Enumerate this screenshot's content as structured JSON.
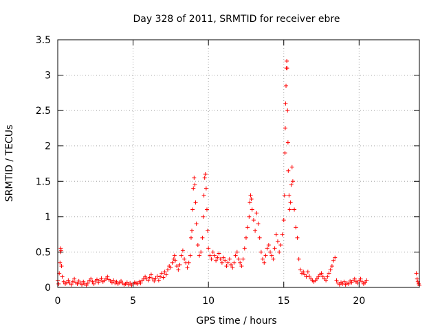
{
  "chart_data": {
    "type": "scatter",
    "title": "Day 328 of 2011, SRMTID for receiver ebre",
    "xlabel": "GPS time / hours",
    "ylabel": "SRMTID / TECUs",
    "xlim": [
      0,
      24
    ],
    "ylim": [
      0,
      3.5
    ],
    "xticks": [
      0,
      5,
      10,
      15,
      20
    ],
    "yticks": [
      0,
      0.5,
      1,
      1.5,
      2,
      2.5,
      3,
      3.5
    ],
    "xtick_labels": [
      "0",
      "5",
      "10",
      "15",
      "20"
    ],
    "ytick_labels": [
      "0",
      "0.5",
      "1",
      "1.5",
      "2",
      "2.5",
      "3",
      "3.5"
    ],
    "grid": true,
    "marker": "+",
    "marker_color": "#ff0000",
    "series": [
      {
        "points": [
          [
            0.0,
            0.1
          ],
          [
            0.05,
            0.05
          ],
          [
            0.1,
            0.2
          ],
          [
            0.15,
            0.35
          ],
          [
            0.18,
            0.5
          ],
          [
            0.2,
            0.55
          ],
          [
            0.22,
            0.52
          ],
          [
            0.25,
            0.3
          ],
          [
            0.3,
            0.15
          ],
          [
            0.4,
            0.08
          ],
          [
            0.5,
            0.05
          ],
          [
            0.6,
            0.07
          ],
          [
            0.7,
            0.1
          ],
          [
            0.8,
            0.06
          ],
          [
            0.9,
            0.04
          ],
          [
            1.0,
            0.08
          ],
          [
            1.1,
            0.12
          ],
          [
            1.2,
            0.07
          ],
          [
            1.3,
            0.05
          ],
          [
            1.4,
            0.09
          ],
          [
            1.5,
            0.06
          ],
          [
            1.6,
            0.04
          ],
          [
            1.7,
            0.08
          ],
          [
            1.8,
            0.05
          ],
          [
            1.9,
            0.03
          ],
          [
            2.0,
            0.06
          ],
          [
            2.1,
            0.1
          ],
          [
            2.2,
            0.12
          ],
          [
            2.3,
            0.08
          ],
          [
            2.4,
            0.05
          ],
          [
            2.5,
            0.09
          ],
          [
            2.6,
            0.11
          ],
          [
            2.7,
            0.07
          ],
          [
            2.8,
            0.1
          ],
          [
            2.9,
            0.13
          ],
          [
            3.0,
            0.08
          ],
          [
            3.1,
            0.1
          ],
          [
            3.2,
            0.12
          ],
          [
            3.3,
            0.15
          ],
          [
            3.4,
            0.11
          ],
          [
            3.5,
            0.09
          ],
          [
            3.6,
            0.07
          ],
          [
            3.7,
            0.1
          ],
          [
            3.8,
            0.06
          ],
          [
            3.9,
            0.08
          ],
          [
            4.0,
            0.05
          ],
          [
            4.1,
            0.07
          ],
          [
            4.2,
            0.09
          ],
          [
            4.3,
            0.06
          ],
          [
            4.4,
            0.04
          ],
          [
            4.5,
            0.05
          ],
          [
            4.6,
            0.07
          ],
          [
            4.7,
            0.04
          ],
          [
            4.8,
            0.06
          ],
          [
            4.9,
            0.03
          ],
          [
            5.0,
            0.05
          ],
          [
            5.1,
            0.07
          ],
          [
            5.2,
            0.06
          ],
          [
            5.3,
            0.05
          ],
          [
            5.4,
            0.08
          ],
          [
            5.5,
            0.06
          ],
          [
            5.6,
            0.1
          ],
          [
            5.7,
            0.12
          ],
          [
            5.8,
            0.15
          ],
          [
            5.9,
            0.12
          ],
          [
            6.0,
            0.1
          ],
          [
            6.1,
            0.14
          ],
          [
            6.2,
            0.18
          ],
          [
            6.3,
            0.12
          ],
          [
            6.4,
            0.09
          ],
          [
            6.5,
            0.13
          ],
          [
            6.6,
            0.16
          ],
          [
            6.7,
            0.1
          ],
          [
            6.8,
            0.15
          ],
          [
            6.9,
            0.2
          ],
          [
            7.0,
            0.14
          ],
          [
            7.1,
            0.22
          ],
          [
            7.2,
            0.18
          ],
          [
            7.3,
            0.25
          ],
          [
            7.4,
            0.3
          ],
          [
            7.5,
            0.28
          ],
          [
            7.6,
            0.35
          ],
          [
            7.7,
            0.4
          ],
          [
            7.75,
            0.45
          ],
          [
            7.8,
            0.38
          ],
          [
            7.9,
            0.3
          ],
          [
            8.0,
            0.25
          ],
          [
            8.1,
            0.32
          ],
          [
            8.2,
            0.45
          ],
          [
            8.3,
            0.52
          ],
          [
            8.4,
            0.4
          ],
          [
            8.5,
            0.35
          ],
          [
            8.6,
            0.28
          ],
          [
            8.7,
            0.35
          ],
          [
            8.8,
            0.45
          ],
          [
            8.85,
            0.7
          ],
          [
            8.9,
            0.8
          ],
          [
            8.95,
            1.1
          ],
          [
            9.0,
            1.4
          ],
          [
            9.05,
            1.55
          ],
          [
            9.1,
            1.45
          ],
          [
            9.15,
            1.2
          ],
          [
            9.2,
            0.9
          ],
          [
            9.3,
            0.6
          ],
          [
            9.4,
            0.45
          ],
          [
            9.5,
            0.5
          ],
          [
            9.6,
            0.7
          ],
          [
            9.65,
            1.0
          ],
          [
            9.7,
            1.3
          ],
          [
            9.75,
            1.55
          ],
          [
            9.8,
            1.6
          ],
          [
            9.85,
            1.4
          ],
          [
            9.9,
            1.1
          ],
          [
            9.95,
            0.8
          ],
          [
            10.0,
            0.55
          ],
          [
            10.1,
            0.45
          ],
          [
            10.2,
            0.4
          ],
          [
            10.3,
            0.5
          ],
          [
            10.4,
            0.45
          ],
          [
            10.5,
            0.38
          ],
          [
            10.6,
            0.42
          ],
          [
            10.7,
            0.48
          ],
          [
            10.8,
            0.4
          ],
          [
            10.9,
            0.35
          ],
          [
            11.0,
            0.42
          ],
          [
            11.1,
            0.38
          ],
          [
            11.2,
            0.3
          ],
          [
            11.3,
            0.35
          ],
          [
            11.4,
            0.4
          ],
          [
            11.5,
            0.32
          ],
          [
            11.6,
            0.28
          ],
          [
            11.7,
            0.35
          ],
          [
            11.8,
            0.45
          ],
          [
            11.9,
            0.5
          ],
          [
            12.0,
            0.4
          ],
          [
            12.1,
            0.35
          ],
          [
            12.2,
            0.3
          ],
          [
            12.3,
            0.4
          ],
          [
            12.4,
            0.55
          ],
          [
            12.5,
            0.7
          ],
          [
            12.6,
            0.85
          ],
          [
            12.7,
            1.0
          ],
          [
            12.75,
            1.2
          ],
          [
            12.8,
            1.3
          ],
          [
            12.85,
            1.25
          ],
          [
            12.9,
            1.1
          ],
          [
            13.0,
            0.95
          ],
          [
            13.1,
            0.8
          ],
          [
            13.2,
            1.05
          ],
          [
            13.3,
            0.9
          ],
          [
            13.4,
            0.7
          ],
          [
            13.5,
            0.5
          ],
          [
            13.6,
            0.4
          ],
          [
            13.7,
            0.35
          ],
          [
            13.8,
            0.45
          ],
          [
            13.9,
            0.55
          ],
          [
            14.0,
            0.6
          ],
          [
            14.1,
            0.5
          ],
          [
            14.2,
            0.45
          ],
          [
            14.3,
            0.4
          ],
          [
            14.4,
            0.55
          ],
          [
            14.5,
            0.75
          ],
          [
            14.6,
            0.65
          ],
          [
            14.7,
            0.5
          ],
          [
            14.8,
            0.6
          ],
          [
            14.9,
            0.75
          ],
          [
            15.0,
            0.95
          ],
          [
            15.05,
            1.3
          ],
          [
            15.08,
            1.9
          ],
          [
            15.1,
            2.25
          ],
          [
            15.12,
            2.6
          ],
          [
            15.15,
            2.85
          ],
          [
            15.18,
            3.1
          ],
          [
            15.2,
            3.2
          ],
          [
            15.22,
            3.1
          ],
          [
            15.25,
            2.5
          ],
          [
            15.28,
            2.05
          ],
          [
            15.3,
            1.65
          ],
          [
            15.35,
            1.3
          ],
          [
            15.4,
            1.1
          ],
          [
            15.45,
            1.2
          ],
          [
            15.5,
            1.45
          ],
          [
            15.55,
            1.7
          ],
          [
            15.6,
            1.5
          ],
          [
            15.7,
            1.1
          ],
          [
            15.8,
            0.85
          ],
          [
            15.9,
            0.7
          ],
          [
            16.0,
            0.4
          ],
          [
            16.1,
            0.25
          ],
          [
            16.2,
            0.2
          ],
          [
            16.3,
            0.22
          ],
          [
            16.4,
            0.18
          ],
          [
            16.5,
            0.15
          ],
          [
            16.6,
            0.22
          ],
          [
            16.7,
            0.16
          ],
          [
            16.8,
            0.12
          ],
          [
            16.9,
            0.1
          ],
          [
            17.0,
            0.08
          ],
          [
            17.1,
            0.1
          ],
          [
            17.2,
            0.12
          ],
          [
            17.3,
            0.15
          ],
          [
            17.4,
            0.18
          ],
          [
            17.5,
            0.2
          ],
          [
            17.6,
            0.15
          ],
          [
            17.7,
            0.12
          ],
          [
            17.8,
            0.1
          ],
          [
            17.9,
            0.15
          ],
          [
            18.0,
            0.2
          ],
          [
            18.1,
            0.25
          ],
          [
            18.2,
            0.3
          ],
          [
            18.3,
            0.38
          ],
          [
            18.4,
            0.42
          ],
          [
            18.5,
            0.1
          ],
          [
            18.6,
            0.06
          ],
          [
            18.7,
            0.04
          ],
          [
            18.8,
            0.07
          ],
          [
            18.9,
            0.05
          ],
          [
            19.0,
            0.08
          ],
          [
            19.1,
            0.04
          ],
          [
            19.2,
            0.06
          ],
          [
            19.3,
            0.05
          ],
          [
            19.4,
            0.09
          ],
          [
            19.5,
            0.07
          ],
          [
            19.6,
            0.1
          ],
          [
            19.7,
            0.12
          ],
          [
            19.8,
            0.08
          ],
          [
            19.9,
            0.06
          ],
          [
            20.0,
            0.1
          ],
          [
            20.1,
            0.12
          ],
          [
            20.2,
            0.08
          ],
          [
            20.3,
            0.05
          ],
          [
            20.4,
            0.07
          ],
          [
            20.5,
            0.1
          ],
          [
            23.8,
            0.2
          ],
          [
            23.85,
            0.12
          ],
          [
            23.9,
            0.08
          ],
          [
            23.95,
            0.05
          ],
          [
            24.0,
            0.03
          ]
        ]
      }
    ]
  }
}
